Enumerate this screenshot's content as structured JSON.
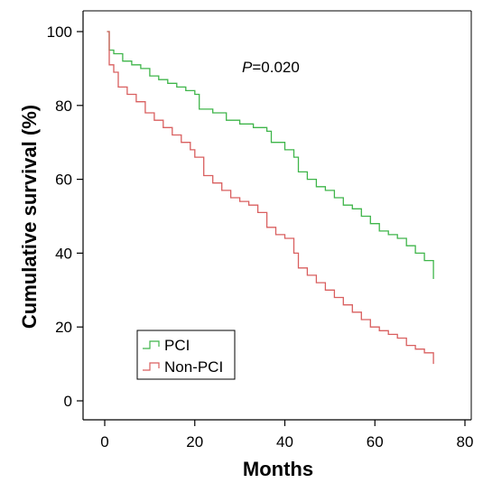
{
  "chart_data": {
    "type": "line",
    "subtype": "kaplan-meier step curve",
    "xlabel": "Months",
    "ylabel": "Cumulative survival (%)",
    "xlim": [
      0,
      80
    ],
    "ylim": [
      0,
      100
    ],
    "xticks": [
      0,
      20,
      40,
      60,
      80
    ],
    "yticks": [
      0,
      20,
      40,
      60,
      80,
      100
    ],
    "grid": false,
    "annotation": {
      "prefix": "P",
      "text": "=0.020"
    },
    "legend": {
      "placement": "bottom-left",
      "boxed": true
    },
    "series": [
      {
        "name": "PCI",
        "color": "#3fb54a",
        "x": [
          0.5,
          1,
          2,
          4,
          6,
          8,
          10,
          12,
          14,
          16,
          18,
          20,
          21,
          24,
          27,
          30,
          33,
          36,
          37,
          40,
          42,
          43,
          45,
          47,
          49,
          51,
          53,
          55,
          57,
          59,
          61,
          63,
          65,
          67,
          69,
          71,
          73,
          73
        ],
        "y": [
          100,
          95,
          94,
          92,
          91,
          90,
          88,
          87,
          86,
          85,
          84,
          83,
          79,
          78,
          76,
          75,
          74,
          73,
          70,
          68,
          66,
          62,
          60,
          58,
          57,
          55,
          53,
          52,
          50,
          48,
          46,
          45,
          44,
          42,
          40,
          38,
          36,
          33
        ]
      },
      {
        "name": "Non-PCI",
        "color": "#d95f5f",
        "x": [
          0.5,
          1,
          2,
          3,
          5,
          7,
          9,
          11,
          13,
          15,
          17,
          19,
          20,
          22,
          24,
          26,
          28,
          30,
          32,
          34,
          36,
          38,
          40,
          42,
          43,
          45,
          47,
          49,
          51,
          53,
          55,
          57,
          59,
          61,
          63,
          65,
          67,
          69,
          71,
          73,
          73
        ],
        "y": [
          100,
          91,
          89,
          85,
          83,
          81,
          78,
          76,
          74,
          72,
          70,
          68,
          66,
          61,
          59,
          57,
          55,
          54,
          53,
          51,
          47,
          45,
          44,
          40,
          36,
          34,
          32,
          30,
          28,
          26,
          24,
          22,
          20,
          19,
          18,
          17,
          15,
          14,
          13,
          12,
          10
        ]
      }
    ]
  }
}
